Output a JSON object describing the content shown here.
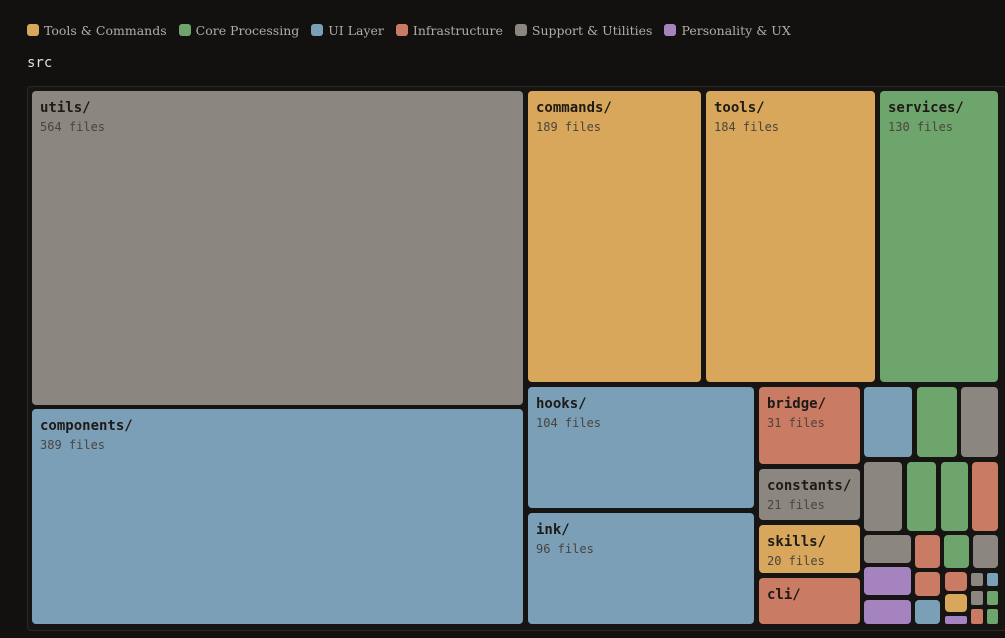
{
  "chart_data": {
    "type": "treemap",
    "title": "src",
    "legend": {
      "placement": "top-left",
      "entries": [
        {
          "name": "Tools & Commands",
          "color": "#d9a75b"
        },
        {
          "name": "Core Processing",
          "color": "#6ea56c"
        },
        {
          "name": "UI Layer",
          "color": "#7c9fb8"
        },
        {
          "name": "Infrastructure",
          "color": "#c97b63"
        },
        {
          "name": "Support & Utilities",
          "color": "#8c8680"
        },
        {
          "name": "Personality & UX",
          "color": "#a583bf"
        }
      ]
    },
    "count_suffix": " files",
    "nodes": [
      {
        "name": "utils/",
        "files": 564,
        "category": "Support & Utilities"
      },
      {
        "name": "components/",
        "files": 389,
        "category": "UI Layer"
      },
      {
        "name": "commands/",
        "files": 189,
        "category": "Tools & Commands"
      },
      {
        "name": "tools/",
        "files": 184,
        "category": "Tools & Commands"
      },
      {
        "name": "services/",
        "files": 130,
        "category": "Core Processing"
      },
      {
        "name": "hooks/",
        "files": 104,
        "category": "UI Layer"
      },
      {
        "name": "ink/",
        "files": 96,
        "category": "UI Layer"
      },
      {
        "name": "bridge/",
        "files": 31,
        "category": "Infrastructure"
      },
      {
        "name": "constants/",
        "files": 21,
        "category": "Support & Utilities"
      },
      {
        "name": "skills/",
        "files": 20,
        "category": "Tools & Commands"
      },
      {
        "name": "cli/",
        "category": "Infrastructure"
      },
      {
        "category": "UI Layer"
      },
      {
        "category": "Core Processing"
      },
      {
        "category": "Support & Utilities"
      },
      {
        "category": "Support & Utilities"
      },
      {
        "category": "Core Processing"
      },
      {
        "category": "Core Processing"
      },
      {
        "category": "Infrastructure"
      },
      {
        "category": "Support & Utilities"
      },
      {
        "category": "Infrastructure"
      },
      {
        "category": "Core Processing"
      },
      {
        "category": "Support & Utilities"
      },
      {
        "category": "Personality & UX"
      },
      {
        "category": "Infrastructure"
      },
      {
        "category": "Infrastructure"
      },
      {
        "category": "Support & Utilities"
      },
      {
        "category": "UI Layer"
      },
      {
        "category": "Personality & UX"
      },
      {
        "category": "UI Layer"
      },
      {
        "category": "Tools & Commands"
      },
      {
        "category": "Support & Utilities"
      },
      {
        "category": "Core Processing"
      },
      {
        "category": "Personality & UX"
      },
      {
        "category": "Infrastructure"
      },
      {
        "category": "Core Processing"
      }
    ]
  }
}
